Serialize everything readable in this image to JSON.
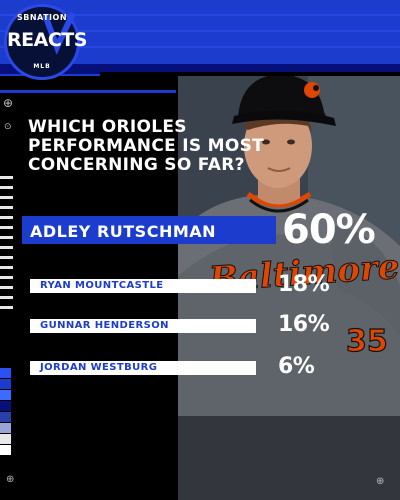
{
  "logo": {
    "top_text": "SBNATION",
    "main_text": "REACTS",
    "bottom_text": "MLB"
  },
  "question": "WHICH ORIOLES PERFORMANCE IS MOST CONCERNING SO FAR?",
  "results": [
    {
      "name": "ADLEY RUTSCHMAN",
      "percent": "60%",
      "value": 60
    },
    {
      "name": "RYAN MOUNTCASTLE",
      "percent": "18%",
      "value": 18
    },
    {
      "name": "GUNNAR HENDERSON",
      "percent": "16%",
      "value": 16
    },
    {
      "name": "JORDAN WESTBURG",
      "percent": "6%",
      "value": 6
    }
  ],
  "colors": {
    "accent": "#1c3ccd",
    "background": "#000000",
    "bar": "#ffffff",
    "text": "#ffffff",
    "orioles_orange": "#df4601"
  },
  "photo": {
    "jersey_text": "Baltimore",
    "jersey_number": "35"
  }
}
